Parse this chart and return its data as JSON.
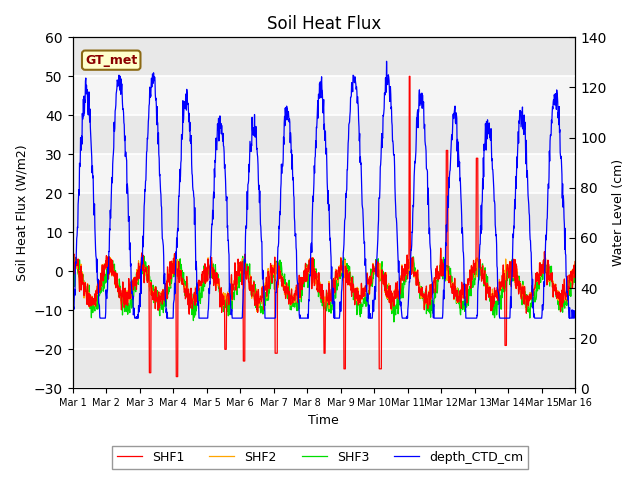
{
  "title": "Soil Heat Flux",
  "xlabel": "Time",
  "ylabel_left": "Soil Heat Flux (W/m2)",
  "ylabel_right": "Water Level (cm)",
  "ylim_left": [
    -30,
    60
  ],
  "ylim_right": [
    0,
    140
  ],
  "yticks_left": [
    -30,
    -20,
    -10,
    0,
    10,
    20,
    30,
    40,
    50,
    60
  ],
  "yticks_right": [
    0,
    20,
    40,
    60,
    80,
    100,
    120,
    140
  ],
  "annotation_text": "GT_met",
  "legend_entries": [
    "SHF1",
    "SHF2",
    "SHF3",
    "depth_CTD_cm"
  ],
  "line_colors": [
    "red",
    "orange",
    "#00dd00",
    "blue"
  ],
  "plot_bg_light": "#f0f0f0",
  "plot_bg_dark": "#e0e0e0",
  "n_days": 15,
  "xticklabels": [
    "Mar 1",
    "Mar 2",
    "Mar 3",
    "Mar 4",
    "Mar 5",
    "Mar 6",
    "Mar 7",
    "Mar 8",
    "Mar 9",
    "Mar 10",
    "Mar 11",
    "Mar 12",
    "Mar 13",
    "Mar 14",
    "Mar 15",
    "Mar 16"
  ]
}
